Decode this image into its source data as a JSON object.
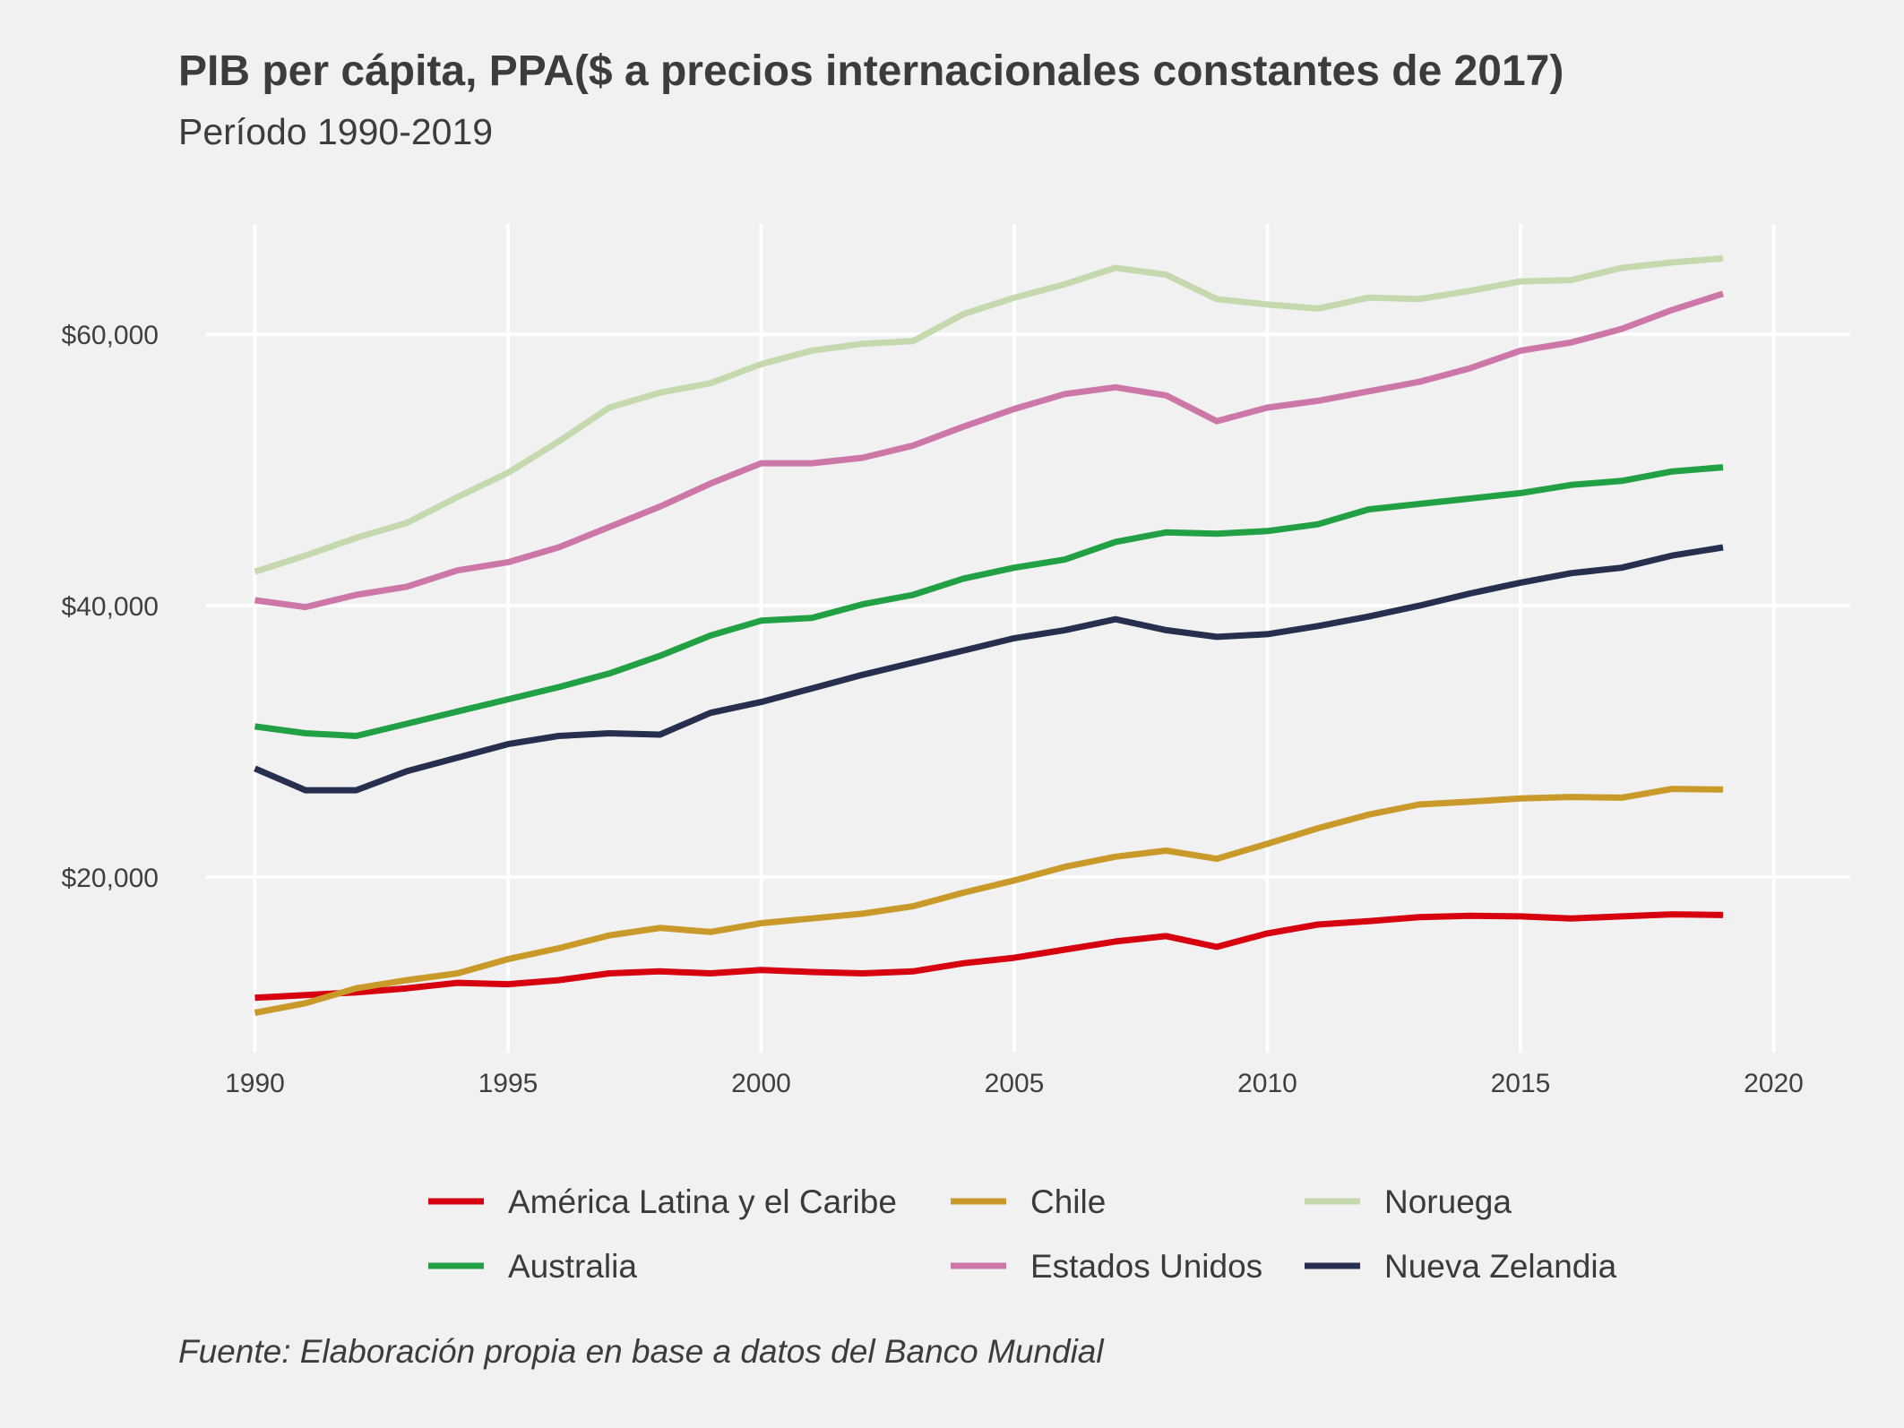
{
  "chart_data": {
    "type": "line",
    "title": "PIB per cápita, PPA($ a precios internacionales constantes de 2017)",
    "subtitle": "Período 1990-2019",
    "caption": "Fuente: Elaboración propia en base a datos del Banco Mundial",
    "xlabel": "",
    "ylabel": "",
    "xlim": [
      1988.5,
      2021.5
    ],
    "ylim": [
      7500,
      67500
    ],
    "x_ticks": [
      1990,
      1995,
      2000,
      2005,
      2010,
      2015,
      2020
    ],
    "x_tick_labels": [
      "1990",
      "1995",
      "2000",
      "2005",
      "2010",
      "2015",
      "2020"
    ],
    "y_ticks": [
      20000,
      40000,
      60000
    ],
    "y_tick_labels": [
      "$20,000",
      "$40,000",
      "$60,000"
    ],
    "grid": true,
    "legend_position": "bottom",
    "x": [
      1990,
      1991,
      1992,
      1993,
      1994,
      1995,
      1996,
      1997,
      1998,
      1999,
      2000,
      2001,
      2002,
      2003,
      2004,
      2005,
      2006,
      2007,
      2008,
      2009,
      2010,
      2011,
      2012,
      2013,
      2014,
      2015,
      2016,
      2017,
      2018,
      2019
    ],
    "series": [
      {
        "name": "América Latina y el Caribe",
        "color": "#d7000f",
        "values": [
          11100,
          11300,
          11500,
          11800,
          12200,
          12100,
          12400,
          12900,
          13050,
          12900,
          13150,
          13000,
          12900,
          13050,
          13650,
          14050,
          14650,
          15250,
          15650,
          14850,
          15850,
          16500,
          16750,
          17050,
          17150,
          17100,
          16950,
          17100,
          17250,
          17200
        ]
      },
      {
        "name": "Chile",
        "color": "#c99a2a",
        "values": [
          10000,
          10700,
          11800,
          12400,
          12900,
          13950,
          14750,
          15700,
          16250,
          15950,
          16600,
          16950,
          17300,
          17850,
          18850,
          19750,
          20750,
          21500,
          21950,
          21350,
          22450,
          23600,
          24600,
          25350,
          25550,
          25800,
          25900,
          25850,
          26500,
          26450
        ]
      },
      {
        "name": "Noruega",
        "color": "#c5d9ae",
        "values": [
          42500,
          43700,
          45000,
          46100,
          48000,
          49800,
          52100,
          54600,
          55700,
          56400,
          57800,
          58800,
          59300,
          59500,
          61500,
          62700,
          63700,
          64900,
          64400,
          62600,
          62200,
          61900,
          62700,
          62600,
          63200,
          63900,
          64000,
          64900,
          65300,
          65600
        ]
      },
      {
        "name": "Australia",
        "color": "#22a044",
        "values": [
          31100,
          30600,
          30400,
          31300,
          32200,
          33100,
          34000,
          35000,
          36300,
          37800,
          38900,
          39100,
          40100,
          40800,
          42000,
          42800,
          43400,
          44700,
          45400,
          45300,
          45500,
          46000,
          47100,
          47500,
          47900,
          48300,
          48900,
          49200,
          49900,
          50200
        ]
      },
      {
        "name": "Estados Unidos",
        "color": "#cc77a8",
        "values": [
          40400,
          39900,
          40800,
          41400,
          42600,
          43200,
          44300,
          45800,
          47300,
          49000,
          50500,
          50500,
          50900,
          51800,
          53200,
          54500,
          55600,
          56100,
          55500,
          53600,
          54600,
          55100,
          55800,
          56500,
          57500,
          58800,
          59400,
          60400,
          61800,
          63000
        ]
      },
      {
        "name": "Nueva Zelandia",
        "color": "#262f4d",
        "values": [
          28000,
          26400,
          26400,
          27800,
          28800,
          29800,
          30400,
          30600,
          30500,
          32100,
          32900,
          33900,
          34900,
          35800,
          36700,
          37600,
          38200,
          39000,
          38200,
          37700,
          37900,
          38500,
          39200,
          40000,
          40900,
          41700,
          42400,
          42800,
          43700,
          44300
        ]
      }
    ]
  }
}
